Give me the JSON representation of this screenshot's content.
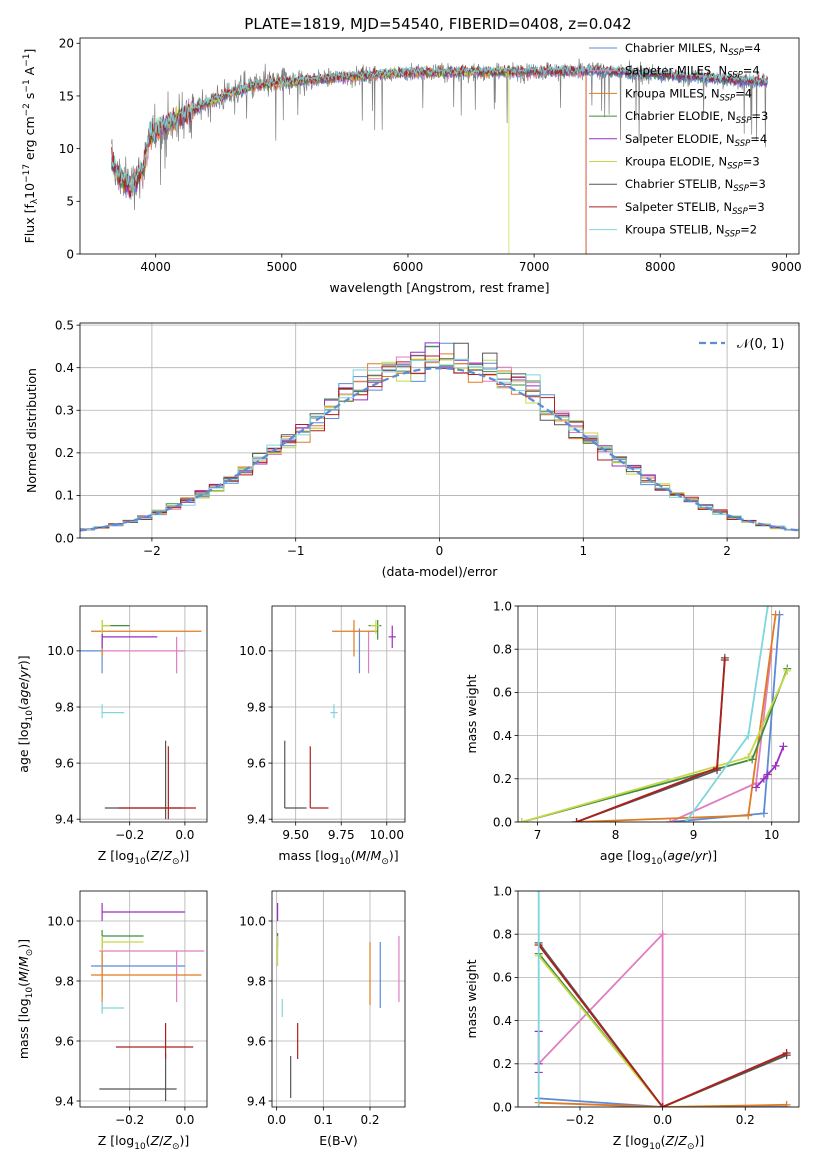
{
  "figure_title": "PLATE=1819, MJD=54540, FIBERID=0408, z=0.042",
  "colors": {
    "Chabrier MILES": "#5b8bd9",
    "Salpeter MILES": "#e07fc0",
    "Kroupa MILES": "#e07b22",
    "Chabrier ELODIE": "#3f8f3f",
    "Salpeter ELODIE": "#9b2fbf",
    "Kroupa ELODIE": "#c8d84a",
    "Chabrier STELIB": "#555555",
    "Salpeter STELIB": "#b01e1e",
    "Kroupa STELIB": "#7fd6dc",
    "normal": "#5b8bd9",
    "grid": "#b0b0b0"
  },
  "chart_data": [
    {
      "id": "spectrum",
      "type": "line",
      "title": "PLATE=1819, MJD=54540, FIBERID=0408, z=0.042",
      "xlabel": "wavelength [Angstrom, rest frame]",
      "ylabel": "Flux [f_λ 10^-17 erg cm^-2 s^-1 A^-1]",
      "xlim": [
        3400,
        9100
      ],
      "ylim": [
        0,
        20.5
      ],
      "xticks": [
        4000,
        5000,
        6000,
        7000,
        8000,
        9000
      ],
      "yticks": [
        0,
        5,
        10,
        15,
        20
      ],
      "grid": false,
      "legend_loc": "upper right",
      "legend": [
        {
          "label": "Chabrier MILES, N_SSP=4",
          "model": "Chabrier MILES"
        },
        {
          "label": "Salpeter MILES, N_SSP=4",
          "model": "Salpeter MILES"
        },
        {
          "label": "Kroupa MILES, N_SSP=4",
          "model": "Kroupa MILES"
        },
        {
          "label": "Chabrier ELODIE, N_SSP=3",
          "model": "Chabrier ELODIE"
        },
        {
          "label": "Salpeter ELODIE, N_SSP=4",
          "model": "Salpeter ELODIE"
        },
        {
          "label": "Kroupa ELODIE, N_SSP=3",
          "model": "Kroupa ELODIE"
        },
        {
          "label": "Chabrier STELIB, N_SSP=3",
          "model": "Chabrier STELIB"
        },
        {
          "label": "Salpeter STELIB, N_SSP=3",
          "model": "Salpeter STELIB"
        },
        {
          "label": "Kroupa STELIB, N_SSP=2",
          "model": "Kroupa STELIB"
        }
      ],
      "observed_color": "#808080",
      "continuum": [
        [
          3650,
          9.0
        ],
        [
          3700,
          7.5
        ],
        [
          3800,
          6.5
        ],
        [
          3900,
          8.0
        ],
        [
          3950,
          11.0
        ],
        [
          4000,
          11.8
        ],
        [
          4200,
          13.0
        ],
        [
          4400,
          14.3
        ],
        [
          4600,
          15.3
        ],
        [
          4800,
          16.0
        ],
        [
          5000,
          16.3
        ],
        [
          5200,
          16.5
        ],
        [
          5600,
          16.9
        ],
        [
          6000,
          17.2
        ],
        [
          6500,
          17.3
        ],
        [
          7000,
          17.3
        ],
        [
          7500,
          17.4
        ],
        [
          8000,
          17.0
        ],
        [
          8500,
          16.6
        ],
        [
          8850,
          16.3
        ]
      ],
      "model_cutoffs": [
        {
          "model": "Kroupa MILES",
          "x": 7410
        },
        {
          "model": "Salpeter MILES",
          "x": 7415
        },
        {
          "model": "Kroupa ELODIE",
          "x": 6800
        }
      ]
    },
    {
      "id": "residuals",
      "type": "histogram",
      "xlabel": "(data-model)/error",
      "ylabel": "Normed distribution",
      "xlim": [
        -2.5,
        2.5
      ],
      "ylim": [
        0,
        0.505
      ],
      "xticks": [
        -2,
        -1,
        0,
        1,
        2
      ],
      "yticks": [
        0.0,
        0.1,
        0.2,
        0.3,
        0.4,
        0.5
      ],
      "grid": true,
      "legend_loc": "upper right",
      "legend": [
        {
          "label": "𝒩(0, 1)",
          "style": "dashed"
        }
      ],
      "bin_width": 0.1,
      "normal": {
        "mean": 0,
        "sigma": 1
      }
    },
    {
      "id": "age-vs-metallicity",
      "type": "scatter",
      "xlabel": "Z [log10(Z/Z_sun)]",
      "ylabel": "age [log10(age/yr)]",
      "xlim": [
        -0.38,
        0.08
      ],
      "ylim": [
        9.39,
        10.16
      ],
      "xticks": [
        -0.2,
        0.0
      ],
      "xtick_labels": [
        "−0.2",
        "0.0"
      ],
      "yticks": [
        9.4,
        9.6,
        9.8,
        10.0
      ],
      "grid": true,
      "points": [
        {
          "model": "Chabrier MILES",
          "x": -0.3,
          "y": 10.0,
          "xerr": [
            0.3,
            0.0
          ],
          "yerr": [
            0.08,
            0.08
          ]
        },
        {
          "model": "Salpeter MILES",
          "x": -0.03,
          "y": 10.0,
          "xerr": [
            0.27,
            0.03
          ],
          "yerr": [
            0.08,
            0.05
          ]
        },
        {
          "model": "Kroupa MILES",
          "x": -0.3,
          "y": 10.07,
          "xerr": [
            0.04,
            0.36
          ],
          "yerr": [
            0.09,
            0.04
          ]
        },
        {
          "model": "Chabrier ELODIE",
          "x": -0.3,
          "y": 10.09,
          "xerr": [
            0.0,
            0.1
          ],
          "yerr": [
            0.05,
            0.02
          ]
        },
        {
          "model": "Salpeter ELODIE",
          "x": -0.3,
          "y": 10.05,
          "xerr": [
            0.0,
            0.2
          ],
          "yerr": [
            0.04,
            0.02
          ]
        },
        {
          "model": "Kroupa ELODIE",
          "x": -0.3,
          "y": 10.09,
          "xerr": [
            0.0,
            0.03
          ],
          "yerr": [
            0.03,
            0.02
          ]
        },
        {
          "model": "Chabrier STELIB",
          "x": -0.07,
          "y": 9.44,
          "xerr": [
            0.22,
            0.06
          ],
          "yerr": [
            0.04,
            0.24
          ]
        },
        {
          "model": "Salpeter STELIB",
          "x": -0.06,
          "y": 9.44,
          "xerr": [
            0.18,
            0.1
          ],
          "yerr": [
            0.04,
            0.22
          ]
        },
        {
          "model": "Kroupa STELIB",
          "x": -0.3,
          "y": 9.78,
          "xerr": [
            0.0,
            0.08
          ],
          "yerr": [
            0.02,
            0.03
          ]
        }
      ]
    },
    {
      "id": "age-vs-mass",
      "type": "scatter",
      "xlabel": "mass [log10(M/M_sun)]",
      "xlim": [
        9.37,
        10.1
      ],
      "ylim": [
        9.39,
        10.16
      ],
      "xticks": [
        9.5,
        9.75,
        10.0
      ],
      "xtick_labels": [
        "9.50",
        "9.75",
        "10.00"
      ],
      "yticks": [
        9.4,
        9.6,
        9.8,
        10.0
      ],
      "grid": true,
      "points": [
        {
          "model": "Chabrier MILES",
          "x": 9.85,
          "y": 10.0,
          "xerr": [
            0.0,
            0.0
          ],
          "yerr": [
            0.08,
            0.08
          ]
        },
        {
          "model": "Salpeter MILES",
          "x": 9.9,
          "y": 10.0,
          "xerr": [
            0.0,
            0.0
          ],
          "yerr": [
            0.08,
            0.07
          ]
        },
        {
          "model": "Kroupa MILES",
          "x": 9.82,
          "y": 10.07,
          "xerr": [
            0.12,
            0.13
          ],
          "yerr": [
            0.09,
            0.04
          ]
        },
        {
          "model": "Chabrier ELODIE",
          "x": 9.95,
          "y": 10.09,
          "xerr": [
            0.05,
            0.02
          ],
          "yerr": [
            0.05,
            0.02
          ]
        },
        {
          "model": "Salpeter ELODIE",
          "x": 10.03,
          "y": 10.05,
          "xerr": [
            0.02,
            0.02
          ],
          "yerr": [
            0.04,
            0.04
          ]
        },
        {
          "model": "Kroupa ELODIE",
          "x": 9.94,
          "y": 10.09,
          "xerr": [
            0.03,
            0.02
          ],
          "yerr": [
            0.03,
            0.02
          ]
        },
        {
          "model": "Chabrier STELIB",
          "x": 9.44,
          "y": 9.44,
          "xerr": [
            0.0,
            0.12
          ],
          "yerr": [
            0.0,
            0.24
          ]
        },
        {
          "model": "Salpeter STELIB",
          "x": 9.58,
          "y": 9.44,
          "xerr": [
            0.0,
            0.1
          ],
          "yerr": [
            0.0,
            0.22
          ]
        },
        {
          "model": "Kroupa STELIB",
          "x": 9.71,
          "y": 9.78,
          "xerr": [
            0.02,
            0.02
          ],
          "yerr": [
            0.02,
            0.03
          ]
        }
      ]
    },
    {
      "id": "weight-vs-age",
      "type": "line",
      "xlabel": "age [log10(age/yr)]",
      "ylabel": "mass weight",
      "xlim": [
        6.75,
        10.35
      ],
      "ylim": [
        0,
        1.0
      ],
      "xticks": [
        7,
        8,
        9,
        10
      ],
      "yticks": [
        0.0,
        0.2,
        0.4,
        0.6,
        0.8,
        1.0
      ],
      "grid": true,
      "series": [
        {
          "model": "Chabrier MILES",
          "x": [
            8.7,
            9.9,
            10.1
          ],
          "y": [
            0.0,
            0.04,
            0.96
          ]
        },
        {
          "model": "Salpeter MILES",
          "x": [
            8.7,
            9.8,
            10.0
          ],
          "y": [
            0.0,
            0.18,
            0.8
          ]
        },
        {
          "model": "Kroupa MILES",
          "x": [
            7.5,
            9.7,
            10.05
          ],
          "y": [
            0.0,
            0.03,
            0.96
          ]
        },
        {
          "model": "Chabrier ELODIE",
          "x": [
            6.8,
            9.75,
            10.2
          ],
          "y": [
            0.0,
            0.29,
            0.71
          ]
        },
        {
          "model": "Salpeter ELODIE",
          "x": [
            9.8,
            9.9,
            9.95,
            10.05,
            10.15
          ],
          "y": [
            0.16,
            0.2,
            0.22,
            0.26,
            0.35
          ]
        },
        {
          "model": "Kroupa ELODIE",
          "x": [
            6.8,
            9.7,
            10.2
          ],
          "y": [
            0.0,
            0.3,
            0.7
          ]
        },
        {
          "model": "Chabrier STELIB",
          "x": [
            7.5,
            9.3,
            9.4
          ],
          "y": [
            0.0,
            0.24,
            0.76
          ]
        },
        {
          "model": "Salpeter STELIB",
          "x": [
            7.5,
            9.3,
            9.4
          ],
          "y": [
            0.0,
            0.25,
            0.75
          ]
        },
        {
          "model": "Kroupa STELIB",
          "x": [
            8.9,
            9.7,
            9.95
          ],
          "y": [
            0.0,
            0.4,
            1.0
          ]
        }
      ]
    },
    {
      "id": "mass-vs-metallicity",
      "type": "scatter",
      "xlabel": "Z [log10(Z/Z_sun)]",
      "ylabel": "mass [log10(M/M_sun)]",
      "xlim": [
        -0.38,
        0.08
      ],
      "ylim": [
        9.38,
        10.1
      ],
      "xticks": [
        -0.2,
        0.0
      ],
      "xtick_labels": [
        "−0.2",
        "0.0"
      ],
      "yticks": [
        9.4,
        9.6,
        9.8,
        10.0
      ],
      "grid": true,
      "points": [
        {
          "model": "Chabrier MILES",
          "x": -0.3,
          "y": 9.85,
          "xerr": [
            0.04,
            0.3
          ],
          "yerr": [
            0.1,
            0.05
          ]
        },
        {
          "model": "Salpeter MILES",
          "x": -0.03,
          "y": 9.9,
          "xerr": [
            0.28,
            0.1
          ],
          "yerr": [
            0.17,
            0.0
          ]
        },
        {
          "model": "Kroupa MILES",
          "x": -0.3,
          "y": 9.82,
          "xerr": [
            0.04,
            0.36
          ],
          "yerr": [
            0.12,
            0.13
          ]
        },
        {
          "model": "Chabrier ELODIE",
          "x": -0.3,
          "y": 9.95,
          "xerr": [
            0.0,
            0.15
          ],
          "yerr": [
            0.04,
            0.02
          ]
        },
        {
          "model": "Salpeter ELODIE",
          "x": -0.3,
          "y": 10.03,
          "xerr": [
            0.0,
            0.3
          ],
          "yerr": [
            0.03,
            0.03
          ]
        },
        {
          "model": "Kroupa ELODIE",
          "x": -0.3,
          "y": 9.93,
          "xerr": [
            0.0,
            0.15
          ],
          "yerr": [
            0.03,
            0.02
          ]
        },
        {
          "model": "Chabrier STELIB",
          "x": -0.07,
          "y": 9.44,
          "xerr": [
            0.24,
            0.04
          ],
          "yerr": [
            0.04,
            0.12
          ]
        },
        {
          "model": "Salpeter STELIB",
          "x": -0.07,
          "y": 9.58,
          "xerr": [
            0.18,
            0.1
          ],
          "yerr": [
            0.04,
            0.08
          ]
        },
        {
          "model": "Kroupa STELIB",
          "x": -0.3,
          "y": 9.71,
          "xerr": [
            0.0,
            0.08
          ],
          "yerr": [
            0.02,
            0.02
          ]
        }
      ]
    },
    {
      "id": "mass-vs-ebv",
      "type": "scatter",
      "xlabel": "E(B-V)",
      "xlim": [
        -0.01,
        0.275
      ],
      "ylim": [
        9.38,
        10.1
      ],
      "xticks": [
        0.0,
        0.1,
        0.2
      ],
      "yticks": [
        9.4,
        9.6,
        9.8,
        10.0
      ],
      "grid": true,
      "points": [
        {
          "model": "Chabrier MILES",
          "x": 0.222,
          "y": 9.85,
          "xerr": [
            0.0,
            0.0
          ],
          "yerr": [
            0.14,
            0.08
          ]
        },
        {
          "model": "Salpeter MILES",
          "x": 0.262,
          "y": 9.85,
          "xerr": [
            0.0,
            0.0
          ],
          "yerr": [
            0.12,
            0.1
          ]
        },
        {
          "model": "Kroupa MILES",
          "x": 0.2,
          "y": 9.82,
          "xerr": [
            0.0,
            0.0
          ],
          "yerr": [
            0.1,
            0.11
          ]
        },
        {
          "model": "Chabrier ELODIE",
          "x": 0.002,
          "y": 9.94,
          "xerr": [
            0.0,
            0.0
          ],
          "yerr": [
            0.03,
            0.02
          ]
        },
        {
          "model": "Salpeter ELODIE",
          "x": 0.002,
          "y": 10.03,
          "xerr": [
            0.0,
            0.0
          ],
          "yerr": [
            0.03,
            0.03
          ]
        },
        {
          "model": "Kroupa ELODIE",
          "x": 0.002,
          "y": 9.9,
          "xerr": [
            0.0,
            0.0
          ],
          "yerr": [
            0.05,
            0.05
          ]
        },
        {
          "model": "Chabrier STELIB",
          "x": 0.03,
          "y": 9.48,
          "xerr": [
            0.0,
            0.0
          ],
          "yerr": [
            0.07,
            0.07
          ]
        },
        {
          "model": "Salpeter STELIB",
          "x": 0.045,
          "y": 9.6,
          "xerr": [
            0.0,
            0.0
          ],
          "yerr": [
            0.06,
            0.06
          ]
        },
        {
          "model": "Kroupa STELIB",
          "x": 0.012,
          "y": 9.71,
          "xerr": [
            0.0,
            0.0
          ],
          "yerr": [
            0.03,
            0.03
          ]
        }
      ]
    },
    {
      "id": "weight-vs-metallicity",
      "type": "line",
      "xlabel": "Z [log10(Z/Z_sun)]",
      "ylabel": "mass weight",
      "xlim": [
        -0.35,
        0.33
      ],
      "ylim": [
        0,
        1.0
      ],
      "xticks": [
        -0.2,
        0.0,
        0.2
      ],
      "xtick_labels": [
        "−0.2",
        "0.0",
        "0.2"
      ],
      "yticks": [
        0.0,
        0.2,
        0.4,
        0.6,
        0.8,
        1.0
      ],
      "grid": true,
      "series": [
        {
          "model": "Chabrier MILES",
          "x": [
            -0.3,
            0.0,
            0.3
          ],
          "y": [
            0.04,
            0.0,
            0.0
          ]
        },
        {
          "model": "Salpeter MILES",
          "x": [
            -0.3,
            0.0,
            0.0
          ],
          "y": [
            0.2,
            0.8,
            0.0
          ]
        },
        {
          "model": "Kroupa MILES",
          "x": [
            -0.3,
            0.0,
            0.3
          ],
          "y": [
            0.02,
            0.0,
            0.01
          ]
        },
        {
          "model": "Chabrier ELODIE",
          "x": [
            -0.3,
            0.0,
            0.3
          ],
          "y": [
            0.71,
            0.0,
            0.24
          ]
        },
        {
          "model": "Salpeter ELODIE",
          "x": [
            -0.3,
            -0.3,
            -0.3
          ],
          "y": [
            0.35,
            0.2,
            0.16
          ]
        },
        {
          "model": "Kroupa ELODIE",
          "x": [
            -0.3,
            0.0,
            0.3
          ],
          "y": [
            0.7,
            0.0,
            0.24
          ]
        },
        {
          "model": "Chabrier STELIB",
          "x": [
            -0.3,
            0.0,
            0.3
          ],
          "y": [
            0.76,
            0.0,
            0.24
          ]
        },
        {
          "model": "Salpeter STELIB",
          "x": [
            -0.3,
            0.0,
            0.3
          ],
          "y": [
            0.75,
            0.0,
            0.25
          ]
        },
        {
          "model": "Kroupa STELIB",
          "x": [
            -0.3,
            -0.3
          ],
          "y": [
            0.0,
            1.0
          ]
        }
      ]
    }
  ]
}
